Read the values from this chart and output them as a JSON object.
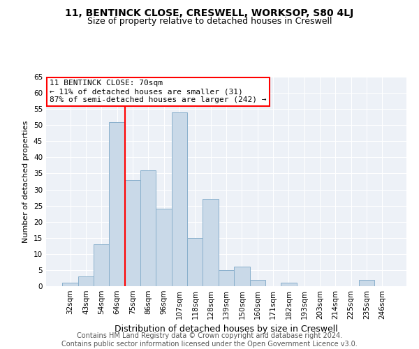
{
  "title": "11, BENTINCK CLOSE, CRESWELL, WORKSOP, S80 4LJ",
  "subtitle": "Size of property relative to detached houses in Creswell",
  "xlabel": "Distribution of detached houses by size in Creswell",
  "ylabel": "Number of detached properties",
  "categories": [
    "32sqm",
    "43sqm",
    "54sqm",
    "64sqm",
    "75sqm",
    "86sqm",
    "96sqm",
    "107sqm",
    "118sqm",
    "128sqm",
    "139sqm",
    "150sqm",
    "160sqm",
    "171sqm",
    "182sqm",
    "193sqm",
    "203sqm",
    "214sqm",
    "225sqm",
    "235sqm",
    "246sqm"
  ],
  "values": [
    1,
    3,
    13,
    51,
    33,
    36,
    24,
    54,
    15,
    27,
    5,
    6,
    2,
    0,
    1,
    0,
    0,
    0,
    0,
    2,
    0
  ],
  "bar_color": "#c9d9e8",
  "bar_edge_color": "#8ab0cc",
  "vline_color": "red",
  "vline_x": 3.5,
  "annotation_text": "11 BENTINCK CLOSE: 70sqm\n← 11% of detached houses are smaller (31)\n87% of semi-detached houses are larger (242) →",
  "annotation_box_color": "white",
  "annotation_box_edge_color": "red",
  "footer_line1": "Contains HM Land Registry data © Crown copyright and database right 2024.",
  "footer_line2": "Contains public sector information licensed under the Open Government Licence v3.0.",
  "bg_color": "#edf1f7",
  "ylim": [
    0,
    65
  ],
  "yticks": [
    0,
    5,
    10,
    15,
    20,
    25,
    30,
    35,
    40,
    45,
    50,
    55,
    60,
    65
  ],
  "title_fontsize": 10,
  "subtitle_fontsize": 9,
  "xlabel_fontsize": 9,
  "ylabel_fontsize": 8,
  "tick_fontsize": 7.5,
  "annot_fontsize": 8,
  "footer_fontsize": 7
}
